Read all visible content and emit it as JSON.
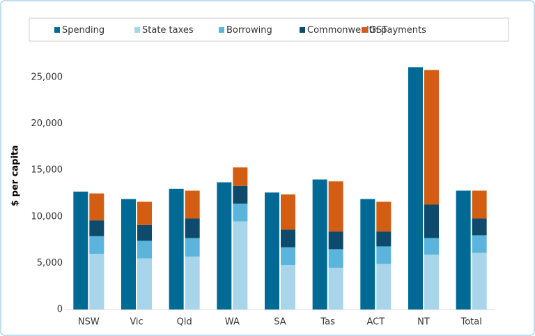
{
  "chart_data": {
    "type": "bar",
    "y_label": "$ per capita",
    "categories": [
      "NSW",
      "Vic",
      "Qld",
      "WA",
      "SA",
      "Tas",
      "ACT",
      "NT",
      "Total"
    ],
    "series": [
      {
        "name": "Spending",
        "color": "#006a94",
        "values": [
          12700,
          11900,
          13000,
          13700,
          12600,
          14000,
          11900,
          26100,
          12800
        ]
      },
      {
        "name": "State taxes",
        "color": "#a8d5ea",
        "values": [
          6000,
          5500,
          5700,
          9500,
          4800,
          4500,
          4900,
          5900,
          6100
        ]
      },
      {
        "name": "Borrowing",
        "color": "#5ab4dc",
        "values": [
          1900,
          1900,
          2000,
          1900,
          1900,
          2000,
          1900,
          1800,
          1900
        ]
      },
      {
        "name": "Commonwealth payments",
        "color": "#0d4a6b",
        "values": [
          1700,
          1700,
          2100,
          1900,
          1900,
          1900,
          1600,
          3600,
          1800
        ]
      },
      {
        "name": "GST",
        "color": "#d35e13",
        "values": [
          2900,
          2500,
          3000,
          2000,
          3800,
          5400,
          3200,
          14500,
          3000
        ]
      }
    ],
    "ylim": [
      0,
      25000
    ],
    "yticks": [
      0,
      {
        "value": 5000,
        "label": "5,000"
      },
      {
        "value": 10000,
        "label": "10,000"
      },
      {
        "value": 15000,
        "label": "15,000"
      },
      {
        "value": 20000,
        "label": "20,000"
      },
      {
        "value": 25000,
        "label": "25,000"
      }
    ],
    "grid": false
  }
}
